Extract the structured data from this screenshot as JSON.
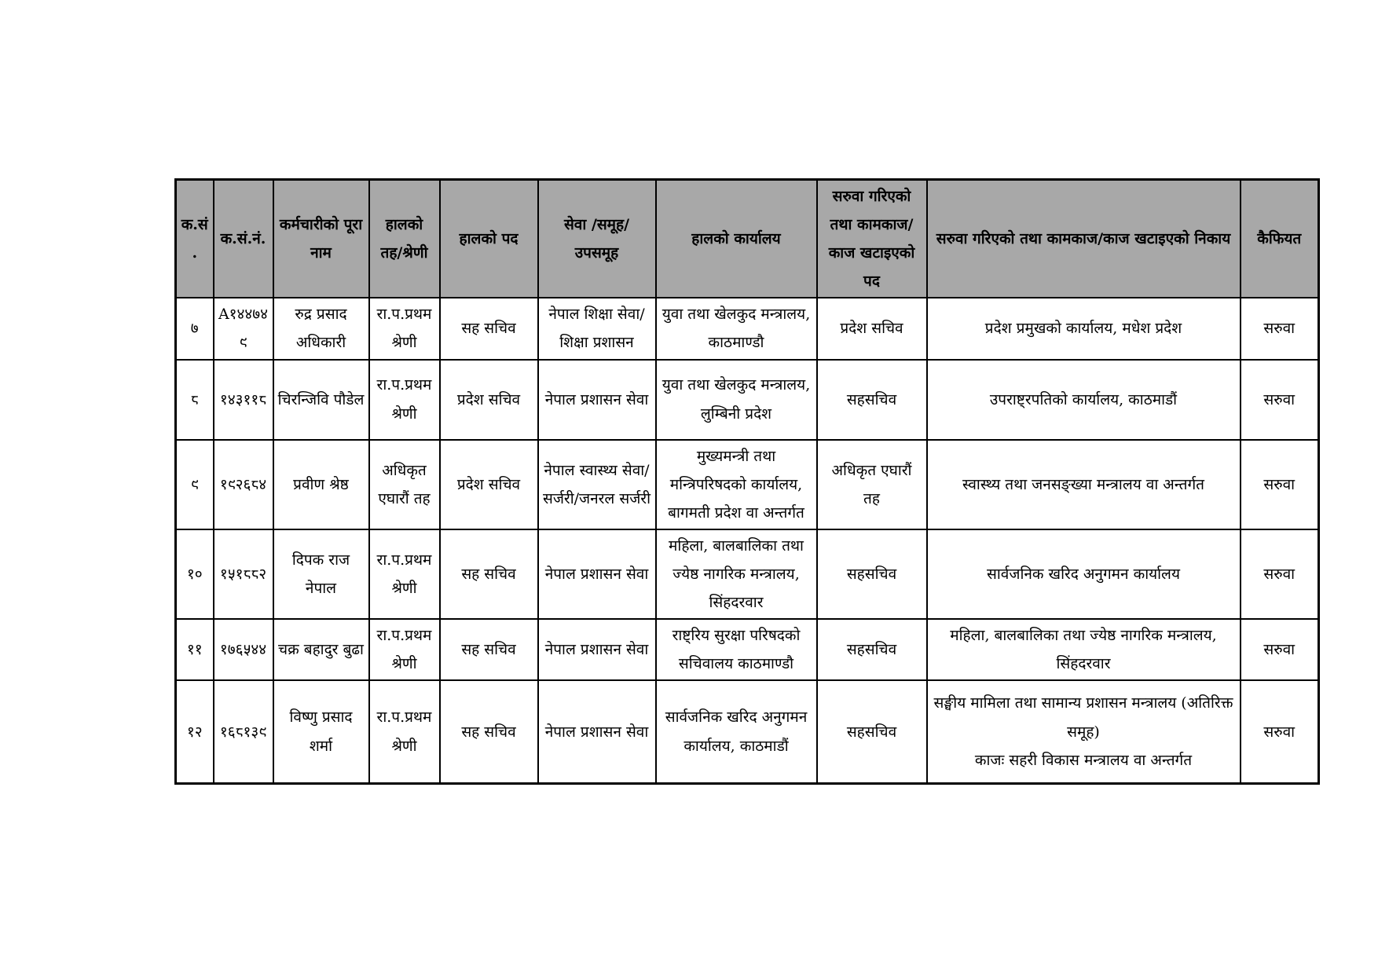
{
  "page": {
    "background": "#ffffff"
  },
  "colors": {
    "header_bg": "#a8a8a8",
    "border": "#000000",
    "text": "#000000"
  },
  "table": {
    "headers": [
      "क.सं.",
      "क.सं.नं.",
      "कर्मचारीको पूरा नाम",
      "हालको तह/श्रेणी",
      "हालको पद",
      "सेवा /समूह/ उपसमूह",
      "हालको कार्यालय",
      "सरुवा गरिएको तथा कामकाज/ काज खटाइएको पद",
      "सरुवा गरिएको तथा कामकाज/काज खटाइएको निकाय",
      "कैफियत"
    ],
    "rows": [
      [
        "७",
        "A१४४७४९",
        "रुद्र प्रसाद अधिकारी",
        "रा.प.प्रथम श्रेणी",
        "सह सचिव",
        "नेपाल शिक्षा सेवा/शिक्षा प्रशासन",
        "युवा तथा खेलकुद मन्त्रालय, काठमाण्डौ",
        "प्रदेश सचिव",
        "प्रदेश प्रमुखको कार्यालय, मधेश प्रदेश",
        "सरुवा"
      ],
      [
        "८",
        "१४३११८",
        "चिरन्जिवि पौडेल",
        "रा.प.प्रथम श्रेणी",
        "प्रदेश सचिव",
        "नेपाल प्रशासन सेवा",
        "युवा तथा खेलकुद मन्त्रालय, लुम्बिनी प्रदेश",
        "सहसचिव",
        "उपराष्ट्रपतिको कार्यालय, काठमाडौं",
        "सरुवा"
      ],
      [
        "९",
        "१९२६८४",
        "प्रवीण श्रेष्ठ",
        "अधिकृत एघारौं तह",
        "प्रदेश सचिव",
        "नेपाल स्वास्थ्य सेवा/सर्जरी/जनरल सर्जरी",
        "मुख्यमन्त्री तथा मन्त्रिपरिषदको कार्यालय, बागमती प्रदेश वा अन्तर्गत",
        "अधिकृत एघारौं तह",
        "स्वास्थ्य तथा जनसङ्ख्या मन्त्रालय वा अन्तर्गत",
        "सरुवा"
      ],
      [
        "१०",
        "१५१८८२",
        "दिपक राज नेपाल",
        "रा.प.प्रथम श्रेणी",
        "सह सचिव",
        "नेपाल प्रशासन सेवा",
        "महिला, बालबालिका तथा ज्येष्ठ नागरिक मन्त्रालय, सिंहदरवार",
        "सहसचिव",
        "सार्वजनिक खरिद अनुगमन कार्यालय",
        "सरुवा"
      ],
      [
        "११",
        "१७६५४४",
        "चक्र बहादुर बुढा",
        "रा.प.प्रथम श्रेणी",
        "सह सचिव",
        "नेपाल प्रशासन सेवा",
        "राष्ट्रिय सुरक्षा परिषदको सचिवालय काठमाण्डौ",
        "सहसचिव",
        "महिला, बालबालिका तथा ज्येष्ठ नागरिक मन्त्रालय, सिंहदरवार",
        "सरुवा"
      ],
      [
        "१२",
        "१६८१३९",
        "विष्णु प्रसाद शर्मा",
        "रा.प.प्रथम श्रेणी",
        "सह सचिव",
        "नेपाल प्रशासन सेवा",
        "सार्वजनिक खरिद अनुगमन कार्यालय, काठमाडौं",
        "सहसचिव",
        "सङ्घीय मामिला तथा सामान्य प्रशासन मन्त्रालय (अतिरिक्त समूह)\nकाजः सहरी विकास मन्त्रालय वा अन्तर्गत",
        "सरुवा"
      ]
    ]
  }
}
